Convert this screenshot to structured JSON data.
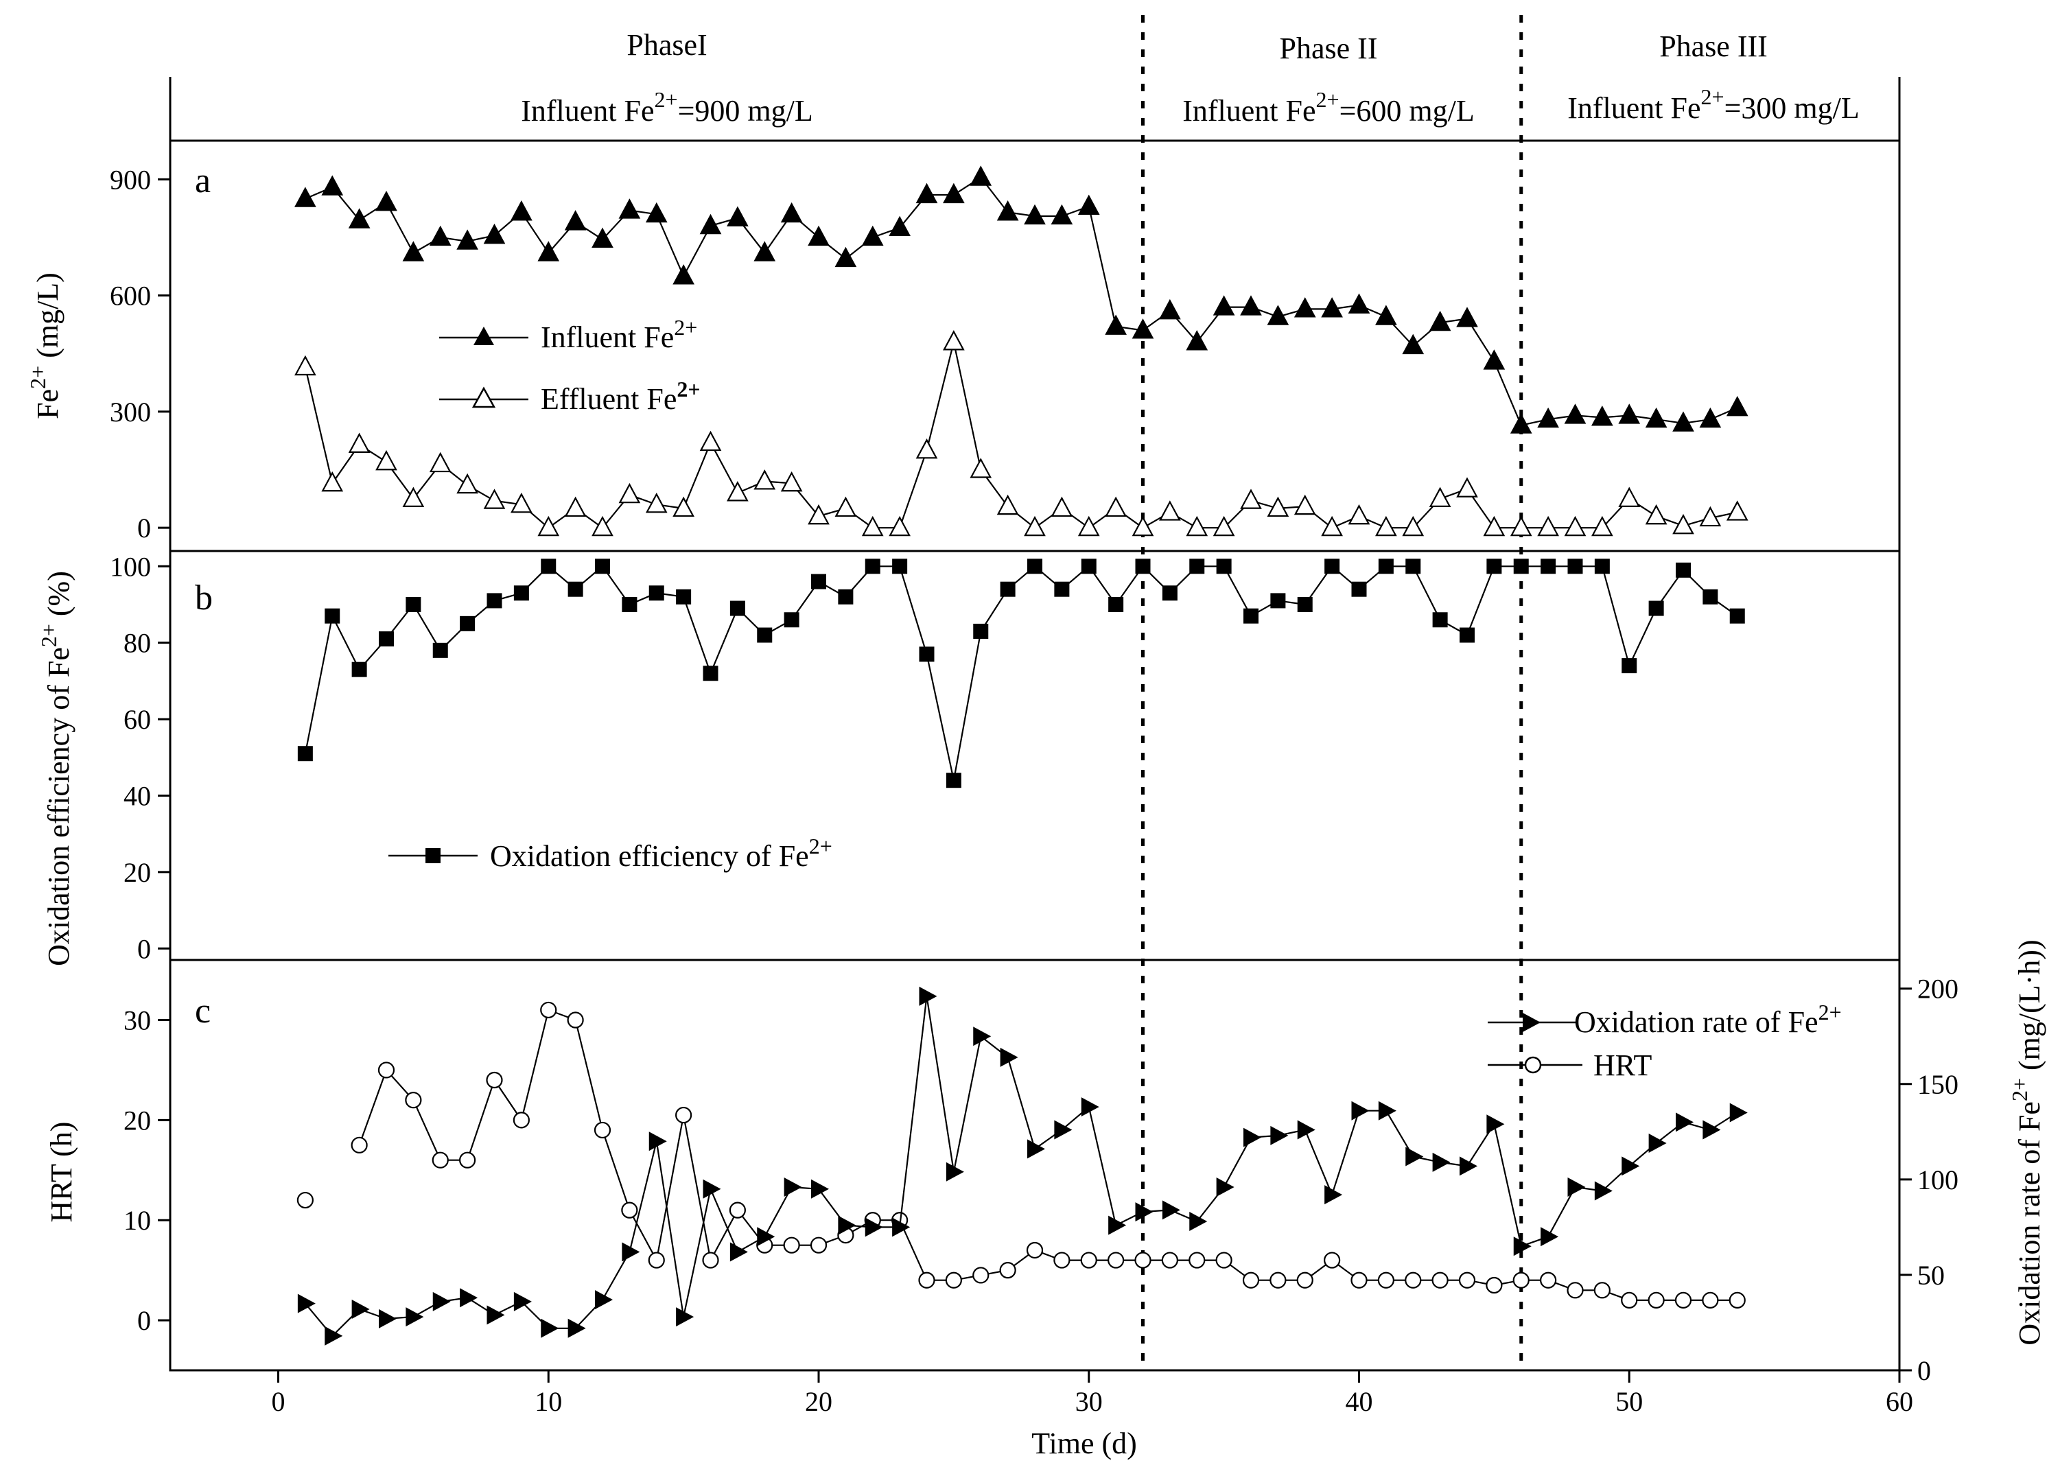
{
  "phases": [
    {
      "name": "PhaseI",
      "label": "Influent Fe",
      "sup": "2+",
      "value": "=900 mg/L"
    },
    {
      "name": "Phase II",
      "label": "Influent Fe",
      "sup": "2+",
      "value": "=600 mg/L"
    },
    {
      "name": "Phase  III",
      "label": "Influent Fe",
      "sup": "2+",
      "value": "=300 mg/L"
    }
  ],
  "x_axis": {
    "label": "Time (d)",
    "range": [
      -4,
      60
    ],
    "ticks": [
      "0",
      "10",
      "20",
      "30",
      "40",
      "50",
      "60"
    ]
  },
  "phase_boundaries": [
    32,
    46
  ],
  "panel_a": {
    "letter": "a",
    "y_axis": {
      "label": "Fe",
      "sup": "2+",
      "unit": " (mg/L)",
      "range": [
        -60,
        1000
      ],
      "ticks": [
        "0",
        "300",
        "600",
        "900"
      ]
    },
    "legend": [
      {
        "label": "Influent Fe",
        "sup": "2+"
      },
      {
        "label": "Effluent Fe",
        "sup": "2+"
      }
    ]
  },
  "panel_b": {
    "letter": "b",
    "y_axis": {
      "label": "Oxidation efficiency of Fe",
      "sup": "2+",
      "unit": " (%)",
      "range": [
        -3,
        104
      ],
      "ticks": [
        "0",
        "20",
        "40",
        "60",
        "80",
        "100"
      ]
    },
    "legend": [
      {
        "label": "Oxidation efficiency of Fe",
        "sup": "2+"
      }
    ]
  },
  "panel_c": {
    "letter": "c",
    "y_axis_left": {
      "label": "HRT (h)",
      "range": [
        -5,
        36
      ],
      "ticks": [
        "0",
        "10",
        "20",
        "30"
      ]
    },
    "y_axis_right": {
      "label": "Oxidation rate of Fe",
      "sup": "2+",
      "unit": " (mg/(L·h))",
      "range": [
        0,
        215
      ],
      "ticks": [
        "0",
        "50",
        "100",
        "150",
        "200"
      ]
    },
    "legend": [
      {
        "label": "Oxidation rate of Fe",
        "sup": "2+"
      },
      {
        "label": "HRT",
        "sup": ""
      }
    ]
  },
  "chart_data": [
    {
      "type": "line",
      "title": "a",
      "xlabel": "Time (d)",
      "ylabel": "Fe2+ (mg/L)",
      "xlim": [
        -4,
        60
      ],
      "ylim": [
        -60,
        1000
      ],
      "x": [
        1,
        2,
        3,
        4,
        5,
        6,
        7,
        8,
        9,
        10,
        11,
        12,
        13,
        14,
        15,
        16,
        17,
        18,
        19,
        20,
        21,
        22,
        23,
        24,
        25,
        26,
        27,
        28,
        29,
        30,
        31,
        32,
        33,
        34,
        35,
        36,
        37,
        38,
        39,
        40,
        41,
        42,
        43,
        44,
        45,
        46,
        47,
        48,
        49,
        50,
        51,
        52,
        53,
        54
      ],
      "series": [
        {
          "name": "Influent Fe2+",
          "marker": "filled-triangle-up",
          "values": [
            850,
            880,
            795,
            840,
            710,
            750,
            740,
            755,
            815,
            710,
            790,
            745,
            820,
            810,
            650,
            780,
            800,
            710,
            810,
            750,
            695,
            750,
            775,
            860,
            860,
            905,
            815,
            805,
            805,
            830,
            520,
            510,
            560,
            480,
            570,
            570,
            545,
            565,
            565,
            575,
            545,
            470,
            530,
            540,
            430,
            265,
            280,
            290,
            285,
            290,
            280,
            270,
            280,
            310
          ]
        },
        {
          "name": "Effluent Fe2+",
          "marker": "open-triangle-up",
          "values": [
            415,
            115,
            215,
            170,
            75,
            165,
            110,
            70,
            60,
            0,
            50,
            0,
            85,
            60,
            50,
            220,
            90,
            120,
            115,
            30,
            50,
            0,
            0,
            200,
            480,
            150,
            55,
            0,
            50,
            0,
            50,
            0,
            40,
            0,
            0,
            70,
            50,
            55,
            0,
            30,
            0,
            0,
            75,
            100,
            0,
            0,
            0,
            0,
            0,
            75,
            30,
            5,
            25,
            40
          ]
        }
      ]
    },
    {
      "type": "line",
      "title": "b",
      "xlabel": "Time (d)",
      "ylabel": "Oxidation efficiency of Fe2+ (%)",
      "xlim": [
        -4,
        60
      ],
      "ylim": [
        -3,
        104
      ],
      "x": [
        1,
        2,
        3,
        4,
        5,
        6,
        7,
        8,
        9,
        10,
        11,
        12,
        13,
        14,
        15,
        16,
        17,
        18,
        19,
        20,
        21,
        22,
        23,
        24,
        25,
        26,
        27,
        28,
        29,
        30,
        31,
        32,
        33,
        34,
        35,
        36,
        37,
        38,
        39,
        40,
        41,
        42,
        43,
        44,
        45,
        46,
        47,
        48,
        49,
        50,
        51,
        52,
        53,
        54
      ],
      "series": [
        {
          "name": "Oxidation efficiency of Fe2+",
          "marker": "filled-square",
          "values": [
            51,
            87,
            73,
            81,
            90,
            78,
            85,
            91,
            93,
            100,
            94,
            100,
            90,
            93,
            92,
            72,
            89,
            82,
            86,
            96,
            92,
            100,
            100,
            77,
            44,
            83,
            94,
            100,
            94,
            100,
            90,
            100,
            93,
            100,
            100,
            87,
            91,
            90,
            100,
            94,
            100,
            100,
            86,
            82,
            100,
            100,
            100,
            100,
            100,
            74,
            89,
            99,
            92,
            87
          ]
        }
      ]
    },
    {
      "type": "line",
      "title": "c",
      "xlabel": "Time (d)",
      "ylabel": "HRT (h)",
      "ylabel_right": "Oxidation rate of Fe2+ (mg/(L·h))",
      "xlim": [
        -4,
        60
      ],
      "ylim": [
        -5,
        36
      ],
      "ylim_right": [
        0,
        215
      ],
      "x": [
        1,
        2,
        3,
        4,
        5,
        6,
        7,
        8,
        9,
        10,
        11,
        12,
        13,
        14,
        15,
        16,
        17,
        18,
        19,
        20,
        21,
        22,
        23,
        24,
        25,
        26,
        27,
        28,
        29,
        30,
        31,
        32,
        33,
        34,
        35,
        36,
        37,
        38,
        39,
        40,
        41,
        42,
        43,
        44,
        45,
        46,
        47,
        48,
        49,
        50,
        51,
        52,
        53,
        54
      ],
      "series": [
        {
          "name": "Oxidation rate of Fe2+",
          "axis": "right",
          "marker": "filled-triangle-right",
          "values": [
            35,
            18,
            32,
            27,
            28,
            36,
            38,
            29,
            36,
            22,
            22,
            37,
            62,
            120,
            28,
            95,
            62,
            70,
            96,
            95,
            76,
            75,
            75,
            196,
            104,
            175,
            164,
            116,
            126,
            138,
            76,
            83,
            84,
            78,
            96,
            122,
            123,
            126,
            92,
            136,
            136,
            112,
            109,
            107,
            129,
            65,
            70,
            96,
            94,
            107,
            119,
            130,
            126,
            135
          ]
        },
        {
          "name": "HRT",
          "axis": "left",
          "marker": "open-circle",
          "values": [
            12,
            null,
            17.5,
            25,
            22,
            16,
            16,
            24,
            20,
            31,
            30,
            19,
            11,
            6,
            20.5,
            6,
            11,
            7.5,
            7.5,
            7.5,
            8.5,
            10,
            10,
            4,
            4,
            4.5,
            5,
            7,
            6,
            6,
            6,
            6,
            6,
            6,
            6,
            4,
            4,
            4,
            6,
            4,
            4,
            4,
            4,
            4,
            3.5,
            4,
            4,
            3,
            3,
            2,
            2,
            2,
            2,
            2
          ]
        }
      ]
    }
  ]
}
